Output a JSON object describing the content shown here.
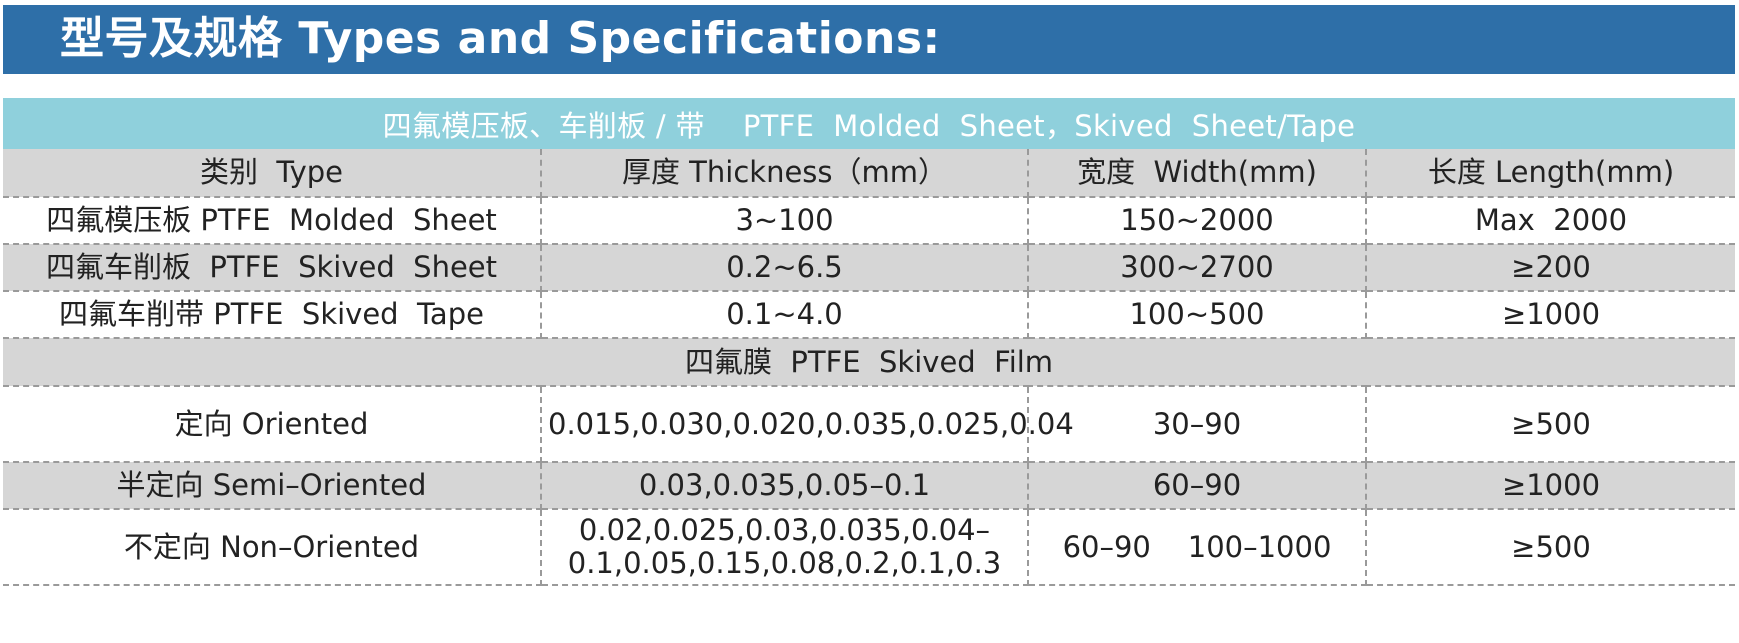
{
  "banner": {
    "title": "型号及规格 Types and Specifications:"
  },
  "table": {
    "heading": "四氟模压板、车削板 / 带    PTFE  Molded  Sheet，Skived  Sheet/Tape",
    "columns": [
      "类别  Type",
      "厚度 Thickness（mm）",
      "宽度  Width(mm)",
      "长度 Length(mm)"
    ],
    "rows": [
      [
        "四氟模压板 PTFE  Molded  Sheet",
        "3~100",
        "150~2000",
        "Max  2000"
      ],
      [
        "四氟车削板  PTFE  Skived  Sheet",
        "0.2~6.5",
        "300~2700",
        "≥200"
      ],
      [
        "四氟车削带 PTFE  Skived  Tape",
        "0.1~4.0",
        "100~500",
        "≥1000"
      ]
    ],
    "film_heading": "四氟膜  PTFE  Skived  Film",
    "film_rows": [
      [
        "定向 Oriented",
        "0.015,0.030,0.020,0.035,0.025,0.04",
        "30–90",
        "≥500"
      ],
      [
        "半定向 Semi–Oriented",
        "0.03,0.035,0.05–0.1",
        "60–90",
        "≥1000"
      ],
      [
        "不定向 Non–Oriented",
        "0.02,0.025,0.03,0.035,0.04–0.1,0.05,0.15,0.08,0.2,0.1,0.3",
        "60–90    100–1000",
        "≥500"
      ]
    ]
  }
}
